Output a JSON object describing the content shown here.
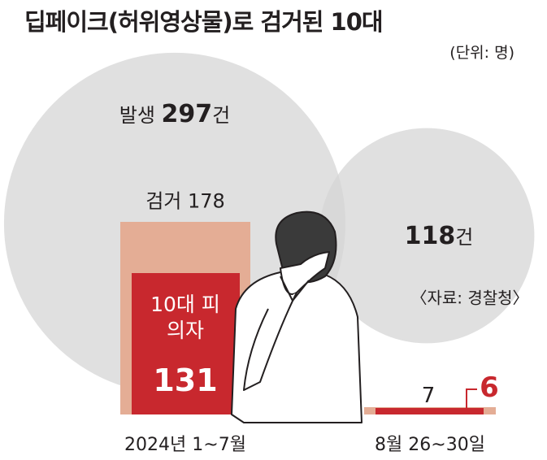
{
  "chart_data": {
    "type": "bar",
    "title": "딥페이크(허위영상물)로 검거된 10대",
    "unit": "(단위: 명)",
    "source": "〈자료: 경찰청〉",
    "circles": [
      {
        "label": "발생",
        "value": 297,
        "suffix": "건"
      },
      {
        "value": 118,
        "suffix": "건"
      }
    ],
    "categories": [
      "2024년 1~7월",
      "8월 26~30일"
    ],
    "series": [
      {
        "name": "검거",
        "color": "#e4ad95",
        "values": [
          178,
          7
        ]
      },
      {
        "name": "10대 피의자",
        "color": "#c8282e",
        "values": [
          131,
          6
        ]
      }
    ]
  }
}
